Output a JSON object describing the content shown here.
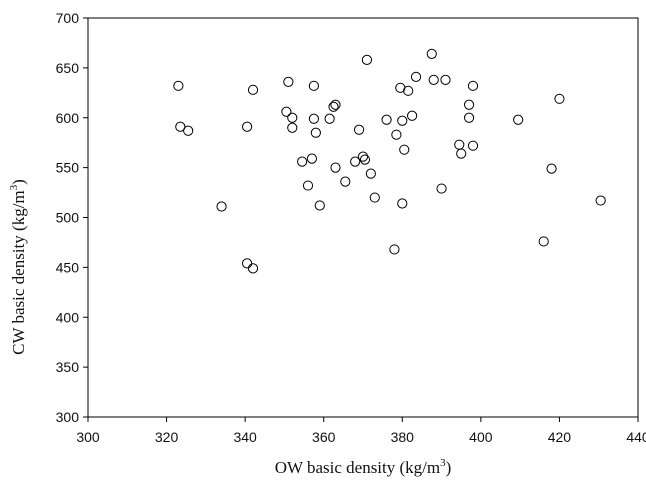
{
  "chart_data": {
    "type": "scatter",
    "title": "",
    "xlabel": "OW basic density (kg/m",
    "xlabel_sup": "3",
    "xlabel_tail": ")",
    "ylabel": "CW basic density (kg/m",
    "ylabel_sup": "3",
    "ylabel_tail": ")",
    "xlim": [
      300,
      440
    ],
    "ylim": [
      300,
      700
    ],
    "xticks": [
      300,
      320,
      340,
      360,
      380,
      400,
      420,
      440
    ],
    "yticks": [
      300,
      350,
      400,
      450,
      500,
      550,
      600,
      650,
      700
    ],
    "grid": false,
    "legend": "none",
    "marker": "open-circle",
    "series": [
      {
        "points": [
          [
            323,
            632
          ],
          [
            323.5,
            591
          ],
          [
            325.5,
            587
          ],
          [
            334,
            511
          ],
          [
            340.5,
            591
          ],
          [
            340.5,
            454
          ],
          [
            342,
            449
          ],
          [
            342,
            628
          ],
          [
            350.5,
            606
          ],
          [
            351,
            636
          ],
          [
            352,
            600
          ],
          [
            352,
            590
          ],
          [
            354.5,
            556
          ],
          [
            356,
            532
          ],
          [
            357,
            559
          ],
          [
            357.5,
            599
          ],
          [
            357.5,
            632
          ],
          [
            358,
            585
          ],
          [
            359,
            512
          ],
          [
            361.5,
            599
          ],
          [
            362.5,
            611
          ],
          [
            363,
            613
          ],
          [
            363,
            550
          ],
          [
            365.5,
            536
          ],
          [
            368,
            556
          ],
          [
            369,
            588
          ],
          [
            370,
            561
          ],
          [
            370.5,
            558
          ],
          [
            371,
            658
          ],
          [
            372,
            544
          ],
          [
            373,
            520
          ],
          [
            376,
            598
          ],
          [
            378,
            468
          ],
          [
            378.5,
            583
          ],
          [
            379.5,
            630
          ],
          [
            380,
            514
          ],
          [
            380,
            597
          ],
          [
            380.5,
            568
          ],
          [
            381.5,
            627
          ],
          [
            382.5,
            602
          ],
          [
            383.5,
            641
          ],
          [
            387.5,
            664
          ],
          [
            388,
            638
          ],
          [
            390,
            529
          ],
          [
            391,
            638
          ],
          [
            394.5,
            573
          ],
          [
            395,
            564
          ],
          [
            397,
            600
          ],
          [
            397,
            613
          ],
          [
            398,
            632
          ],
          [
            398,
            572
          ],
          [
            409.5,
            598
          ],
          [
            416,
            476
          ],
          [
            418,
            549
          ],
          [
            420,
            619
          ],
          [
            430.5,
            517
          ]
        ]
      }
    ]
  }
}
